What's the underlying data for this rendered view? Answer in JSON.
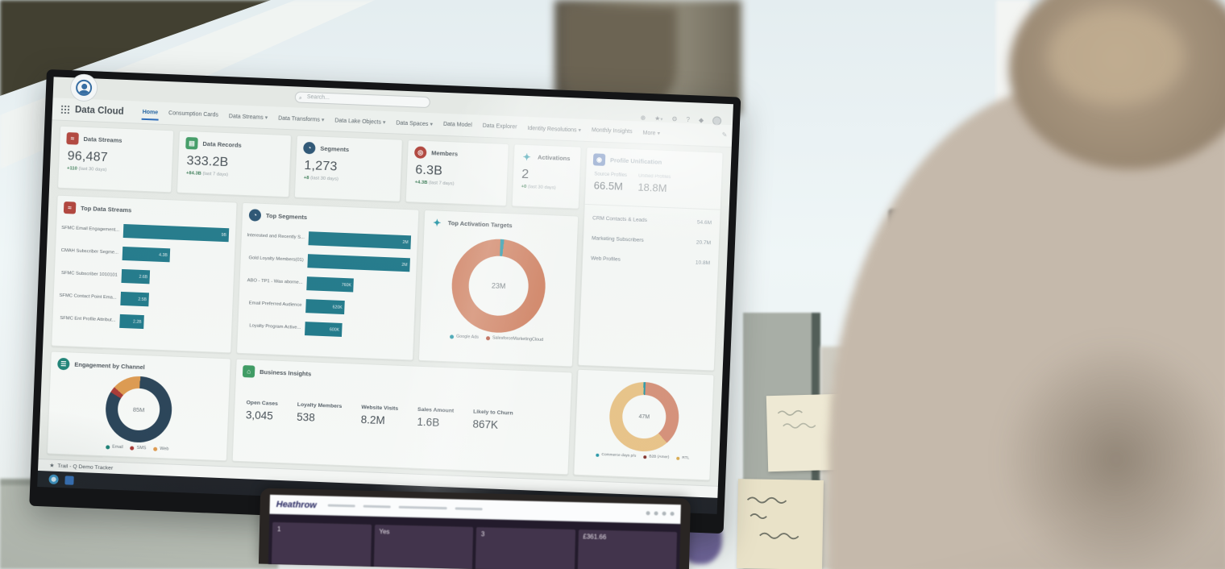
{
  "colors": {
    "teal_bar": "#0f7a8f",
    "salmon": "#dd7f5a",
    "navy": "#22425a",
    "orange": "#e8973f",
    "yellow": "#efc27c",
    "red_icon": "#c0392f",
    "green_icon": "#2e9e5b",
    "blue_accent": "#1464c8"
  },
  "icons": {
    "header_right": [
      "globe-icon",
      "favorites-star-icon",
      "setup-gear-icon",
      "help-icon",
      "notifications-bell-icon",
      "avatar"
    ],
    "app_launcher": "waffle-grid-icon",
    "status_star": "star-icon"
  },
  "screen": {
    "global_nav": {
      "app_name": "Data Cloud",
      "search_placeholder": "Search...",
      "tabs": [
        {
          "label": "Home"
        },
        {
          "label": "Consumption Cards"
        },
        {
          "label": "Data Streams"
        },
        {
          "label": "Data Transforms"
        },
        {
          "label": "Data Lake Objects"
        },
        {
          "label": "Data Spaces"
        },
        {
          "label": "Data Model"
        },
        {
          "label": "Data Explorer"
        },
        {
          "label": "Identity Resolutions"
        },
        {
          "label": "Monthly Insights"
        },
        {
          "label": "More"
        }
      ]
    },
    "kpis": [
      {
        "label": "Data Streams",
        "value": "96,487",
        "delta": "+110",
        "period": "(last 30 days)"
      },
      {
        "label": "Data Records",
        "value": "333.2B",
        "delta": "+84.3B",
        "period": "(last 7 days)"
      },
      {
        "label": "Segments",
        "value": "1,273",
        "delta": "+8",
        "period": "(last 30 days)"
      },
      {
        "label": "Members",
        "value": "6.3B",
        "delta": "+4.3B",
        "period": "(last 7 days)"
      },
      {
        "label": "Activations",
        "value": "2",
        "delta": "+0",
        "period": "(last 30 days)"
      }
    ],
    "profile_unification": {
      "title": "Profile Unification",
      "source_profiles_label": "Source Profiles",
      "source_profiles_value": "66.5M",
      "unified_profiles_label": "Unified Profiles",
      "unified_profiles_value": "18.8M",
      "rows": [
        {
          "label": "CRM Contacts & Leads",
          "value": "54.6M"
        },
        {
          "label": "Marketing Subscribers",
          "value": "20.7M"
        },
        {
          "label": "Web Profiles",
          "value": "10.8M"
        }
      ]
    },
    "top_data_streams": {
      "title": "Top Data Streams",
      "bars": [
        {
          "label": "SFMC Email Engagement...",
          "value": "9B",
          "pct": 100
        },
        {
          "label": "CMAH Subscriber Segme...",
          "value": "4.3B",
          "pct": 45
        },
        {
          "label": "SFMC Subscriber 1010101",
          "value": "2.6B",
          "pct": 27
        },
        {
          "label": "SFMC Contact Point Ema...",
          "value": "2.5B",
          "pct": 27
        },
        {
          "label": "SFMC Ent Profile Attribut...",
          "value": "2.2B",
          "pct": 23
        }
      ]
    },
    "top_segments": {
      "title": "Top Segments",
      "bars": [
        {
          "label": "Interested and Recently S...",
          "value": "2M",
          "pct": 100
        },
        {
          "label": "Gold Loyalty Members(01)",
          "value": "2M",
          "pct": 100
        },
        {
          "label": "ABO - TP1 - Was aborne...",
          "value": "760K",
          "pct": 46
        },
        {
          "label": "Email Preferred Audience",
          "value": "620K",
          "pct": 38
        },
        {
          "label": "Loyalty Program Active...",
          "value": "600K",
          "pct": 36
        }
      ]
    },
    "top_activation_targets": {
      "title": "Top Activation Targets",
      "center": "23M",
      "legend": [
        {
          "label": "Google Ads"
        },
        {
          "label": "SalesforceMarketingCloud"
        }
      ]
    },
    "engagement_by_channel": {
      "title": "Engagement by Channel",
      "center": "85M",
      "legend": [
        {
          "label": "Email"
        },
        {
          "label": "SMS"
        },
        {
          "label": "Web"
        }
      ]
    },
    "business_insights": {
      "title": "Business Insights",
      "metrics": [
        {
          "label": "Open Cases",
          "value": "3,045"
        },
        {
          "label": "Loyalty Members",
          "value": "538"
        },
        {
          "label": "Website Visits",
          "value": "8.2M"
        },
        {
          "label": "Sales Amount",
          "value": "1.6B"
        },
        {
          "label": "Likely to Churn",
          "value": "867K"
        }
      ]
    },
    "segment_donut": {
      "center": "47M",
      "legend": [
        {
          "label": "Commerce days p/u"
        },
        {
          "label": "B2B (Amer)"
        },
        {
          "label": "RTL"
        }
      ]
    },
    "status_bar": {
      "label": "Trail - Q Demo Tracker"
    }
  },
  "laptop": {
    "brand": "Heathrow",
    "cells": [
      "1",
      "Yes",
      "3",
      "£361.66"
    ]
  },
  "chart_data": [
    {
      "type": "bar",
      "title": "Top Data Streams",
      "orientation": "horizontal",
      "categories": [
        "SFMC Email Engagement...",
        "CMAH Subscriber Segme...",
        "SFMC Subscriber 1010101",
        "SFMC Contact Point Ema...",
        "SFMC Ent Profile Attribut..."
      ],
      "values": [
        100,
        45,
        27,
        27,
        23
      ],
      "value_unit": "relative length %",
      "bar_color": "#0f7a8f",
      "grid": false
    },
    {
      "type": "bar",
      "title": "Top Segments",
      "orientation": "horizontal",
      "categories": [
        "Interested and Recently S...",
        "Gold Loyalty Members(01)",
        "ABO - TP1 - Was aborne...",
        "Email Preferred Audience",
        "Loyalty Program Active..."
      ],
      "values": [
        100,
        100,
        46,
        38,
        36
      ],
      "value_unit": "relative length %",
      "bar_color": "#0f7a8f",
      "grid": false
    },
    {
      "type": "pie",
      "title": "Top Activation Targets",
      "center_label": "23M",
      "legend_position": "bottom",
      "series": [
        {
          "name": "SalesforceMarketingCloud",
          "value": 99,
          "color": "#dd7f5a"
        },
        {
          "name": "Google Ads",
          "value": 1,
          "color": "#1a9db0"
        }
      ]
    },
    {
      "type": "pie",
      "title": "Engagement by Channel",
      "center_label": "85M",
      "legend_position": "bottom",
      "series": [
        {
          "name": "Email",
          "value": 84,
          "color": "#23425a"
        },
        {
          "name": "Web",
          "value": 13,
          "color": "#e8973f"
        },
        {
          "name": "SMS",
          "value": 3,
          "color": "#b8332e"
        }
      ]
    },
    {
      "type": "table",
      "title": "Business Insights",
      "columns": [
        "Open Cases",
        "Loyalty Members",
        "Website Visits",
        "Sales Amount",
        "Likely to Churn"
      ],
      "values": [
        "3,045",
        "538",
        "8.2M",
        "1.6B",
        "867K"
      ]
    },
    {
      "type": "pie",
      "title": "",
      "center_label": "47M",
      "legend_position": "bottom",
      "series": [
        {
          "name": "B2B (Amer)",
          "value": 38,
          "color": "#df8e72"
        },
        {
          "name": "RTL",
          "value": 61,
          "color": "#efc27c"
        },
        {
          "name": "Commerce days p/u",
          "value": 1,
          "color": "#1a9db0"
        }
      ]
    }
  ]
}
